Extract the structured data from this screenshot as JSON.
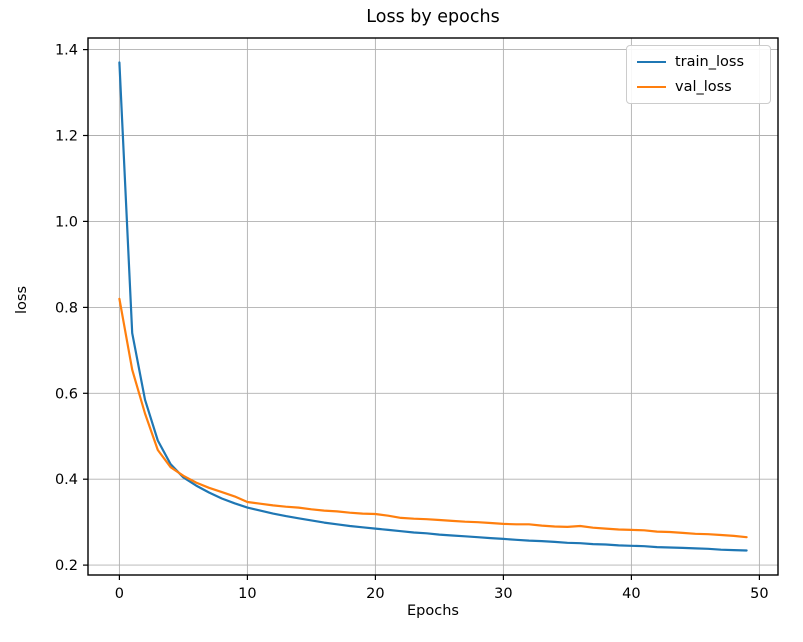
{
  "figure": {
    "title": "Loss by epochs",
    "xlabel": "Epochs",
    "ylabel": "loss"
  },
  "chart_data": {
    "type": "line",
    "title": "Loss by epochs",
    "xlabel": "Epochs",
    "ylabel": "loss",
    "grid": true,
    "legend_position": "upper right",
    "xlim": [
      -2.45,
      51.45
    ],
    "ylim": [
      0.177,
      1.427
    ],
    "xticks": [
      0,
      10,
      20,
      30,
      40,
      50
    ],
    "yticks": [
      0.2,
      0.4,
      0.6,
      0.8,
      1.0,
      1.2,
      1.4
    ],
    "x": [
      0,
      1,
      2,
      3,
      4,
      5,
      6,
      7,
      8,
      9,
      10,
      11,
      12,
      13,
      14,
      15,
      16,
      17,
      18,
      19,
      20,
      21,
      22,
      23,
      24,
      25,
      26,
      27,
      28,
      29,
      30,
      31,
      32,
      33,
      34,
      35,
      36,
      37,
      38,
      39,
      40,
      41,
      42,
      43,
      44,
      45,
      46,
      47,
      48,
      49
    ],
    "series": [
      {
        "name": "train_loss",
        "color": "#1f77b4",
        "values": [
          1.37,
          0.74,
          0.585,
          0.49,
          0.435,
          0.404,
          0.385,
          0.369,
          0.355,
          0.344,
          0.334,
          0.327,
          0.32,
          0.314,
          0.309,
          0.304,
          0.299,
          0.295,
          0.291,
          0.288,
          0.285,
          0.282,
          0.279,
          0.276,
          0.274,
          0.271,
          0.269,
          0.267,
          0.265,
          0.263,
          0.261,
          0.259,
          0.257,
          0.256,
          0.254,
          0.252,
          0.251,
          0.249,
          0.248,
          0.246,
          0.245,
          0.244,
          0.242,
          0.241,
          0.24,
          0.239,
          0.238,
          0.236,
          0.235,
          0.234
        ]
      },
      {
        "name": "val_loss",
        "color": "#ff7f0e",
        "values": [
          0.82,
          0.655,
          0.553,
          0.468,
          0.428,
          0.408,
          0.392,
          0.38,
          0.37,
          0.36,
          0.347,
          0.343,
          0.339,
          0.336,
          0.334,
          0.33,
          0.327,
          0.325,
          0.322,
          0.32,
          0.319,
          0.315,
          0.31,
          0.308,
          0.307,
          0.305,
          0.303,
          0.301,
          0.3,
          0.298,
          0.296,
          0.295,
          0.295,
          0.292,
          0.29,
          0.289,
          0.291,
          0.287,
          0.285,
          0.283,
          0.282,
          0.281,
          0.278,
          0.277,
          0.275,
          0.273,
          0.272,
          0.27,
          0.268,
          0.265
        ]
      }
    ]
  },
  "colors": {
    "grid": "#b0b0b0",
    "spine": "#000000",
    "background": "#ffffff",
    "train_loss": "#1f77b4",
    "val_loss": "#ff7f0e"
  }
}
